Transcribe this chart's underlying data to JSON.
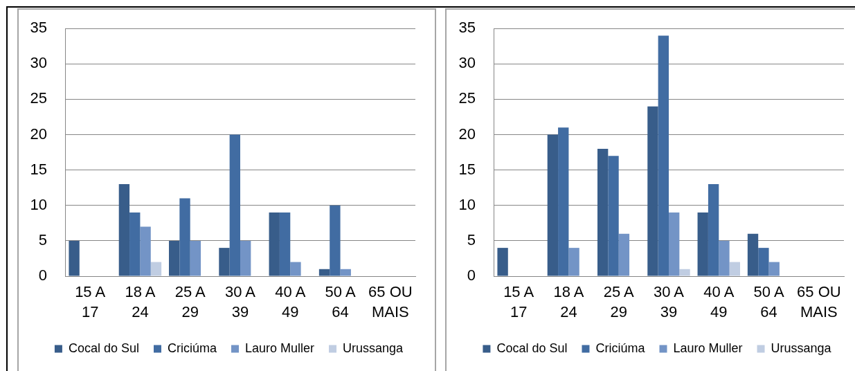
{
  "chart_data": [
    {
      "type": "bar",
      "categories": [
        "15 A 17",
        "18 A 24",
        "25 A 29",
        "30 A 39",
        "40 A 49",
        "50 A 64",
        "65 OU MAIS"
      ],
      "series": [
        {
          "name": "Cocal do Sul",
          "color": "#385d8a",
          "values": [
            5,
            13,
            5,
            4,
            9,
            1,
            0
          ]
        },
        {
          "name": "Criciúma",
          "color": "#416ca2",
          "values": [
            0,
            9,
            11,
            20,
            9,
            10,
            0
          ]
        },
        {
          "name": "Lauro Muller",
          "color": "#7394c6",
          "values": [
            0,
            7,
            5,
            5,
            2,
            1,
            0
          ]
        },
        {
          "name": "Urussanga",
          "color": "#c0cde2",
          "values": [
            0,
            2,
            0,
            0,
            0,
            0,
            0
          ]
        }
      ],
      "ylim": [
        0,
        35
      ],
      "yticks": [
        0,
        5,
        10,
        15,
        20,
        25,
        30,
        35
      ],
      "grid": "y",
      "legend": "bottom"
    },
    {
      "type": "bar",
      "categories": [
        "15 A 17",
        "18 A 24",
        "25 A 29",
        "30 A 39",
        "40 A 49",
        "50 A 64",
        "65 OU MAIS"
      ],
      "series": [
        {
          "name": "Cocal do Sul",
          "color": "#385d8a",
          "values": [
            4,
            20,
            18,
            24,
            9,
            6,
            0
          ]
        },
        {
          "name": "Criciúma",
          "color": "#416ca2",
          "values": [
            0,
            21,
            17,
            34,
            13,
            4,
            0
          ]
        },
        {
          "name": "Lauro Muller",
          "color": "#7394c6",
          "values": [
            0,
            4,
            6,
            9,
            5,
            2,
            0
          ]
        },
        {
          "name": "Urussanga",
          "color": "#c0cde2",
          "values": [
            0,
            0,
            0,
            1,
            2,
            0,
            0
          ]
        }
      ],
      "ylim": [
        0,
        35
      ],
      "yticks": [
        0,
        5,
        10,
        15,
        20,
        25,
        30,
        35
      ],
      "grid": "y",
      "legend": "bottom"
    }
  ]
}
